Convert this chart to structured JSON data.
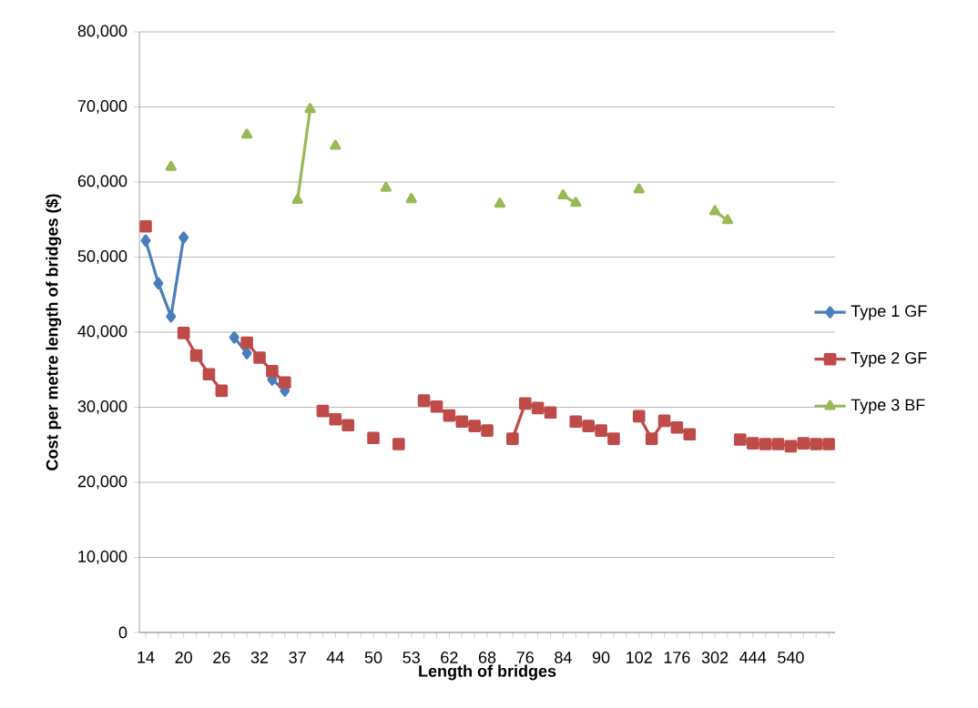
{
  "chart_data": {
    "type": "line",
    "xlabel": "Length of bridges",
    "ylabel": "Cost per metre length of bridges ($)",
    "categories": [
      "14",
      null,
      null,
      "20",
      null,
      null,
      "26",
      null,
      null,
      "32",
      null,
      null,
      "37",
      null,
      null,
      "44",
      null,
      null,
      "50",
      null,
      null,
      "53",
      null,
      null,
      "62",
      null,
      null,
      "68",
      null,
      null,
      "76",
      null,
      null,
      "84",
      null,
      null,
      "90",
      null,
      null,
      "102",
      null,
      null,
      "176",
      null,
      null,
      "302",
      null,
      null,
      "444",
      null,
      null,
      "540",
      null,
      null,
      null
    ],
    "series": [
      {
        "name": "Type 1 GF",
        "color": "#4a7ebb",
        "marker": "diamond",
        "values": [
          52200,
          46500,
          42100,
          52600,
          null,
          null,
          null,
          39300,
          37200,
          null,
          33700,
          32200,
          null,
          null,
          null,
          null,
          null,
          null,
          null,
          null,
          null,
          null,
          null,
          null,
          null,
          null,
          null,
          null,
          null,
          null,
          null,
          null,
          null,
          null,
          null,
          null,
          null,
          null,
          null,
          null,
          null,
          null,
          null,
          null,
          null,
          null,
          null,
          null,
          null,
          null,
          null,
          null,
          null,
          null,
          null
        ]
      },
      {
        "name": "Type 2 GF",
        "color": "#be4b48",
        "marker": "square",
        "values": [
          54100,
          null,
          null,
          39900,
          36900,
          34400,
          32200,
          null,
          38600,
          36600,
          34800,
          33300,
          null,
          null,
          29500,
          28400,
          27600,
          null,
          25900,
          null,
          25100,
          null,
          30900,
          30100,
          28900,
          28100,
          27500,
          26900,
          null,
          25800,
          30500,
          29900,
          29300,
          null,
          28100,
          27500,
          26900,
          25800,
          null,
          28800,
          25800,
          28200,
          27300,
          26400,
          null,
          null,
          null,
          25700,
          25200,
          25100,
          25100,
          24800,
          25200,
          25100,
          25100
        ]
      },
      {
        "name": "Type 3 BF",
        "color": "#98b954",
        "marker": "triangle",
        "values": [
          null,
          null,
          62000,
          null,
          null,
          null,
          null,
          null,
          66300,
          null,
          null,
          null,
          57600,
          69700,
          null,
          64800,
          null,
          null,
          null,
          59200,
          null,
          57700,
          null,
          null,
          null,
          null,
          null,
          null,
          57100,
          null,
          null,
          null,
          null,
          58200,
          57200,
          null,
          null,
          null,
          null,
          59000,
          null,
          null,
          null,
          null,
          null,
          56100,
          54900,
          null,
          null,
          null,
          null,
          null,
          null,
          null,
          null
        ]
      }
    ],
    "ylim": [
      0,
      80000
    ],
    "yticks": [
      0,
      {
        "value": 10000,
        "label": "10,000"
      },
      {
        "value": 20000,
        "label": "20,000"
      },
      {
        "value": 30000,
        "label": "30,000"
      },
      {
        "value": 40000,
        "label": "40,000"
      },
      {
        "value": 50000,
        "label": "50,000"
      },
      {
        "value": 60000,
        "label": "60,000"
      },
      {
        "value": 70000,
        "label": "70,000"
      },
      {
        "value": 80000,
        "label": "80,000"
      }
    ],
    "grid": "y",
    "legend": "right"
  }
}
